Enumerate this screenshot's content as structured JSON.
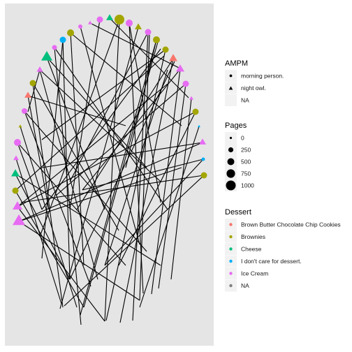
{
  "legends": {
    "ampm": {
      "title": "AMPM",
      "items": [
        {
          "label": "morning person.",
          "shape": "circle"
        },
        {
          "label": "night owl.",
          "shape": "triangle"
        },
        {
          "label": "NA",
          "shape": "none"
        }
      ]
    },
    "pages": {
      "title": "Pages",
      "items": [
        {
          "label": "0",
          "value": 0
        },
        {
          "label": "250",
          "value": 250
        },
        {
          "label": "500",
          "value": 500
        },
        {
          "label": "750",
          "value": 750
        },
        {
          "label": "1000",
          "value": 1000
        }
      ]
    },
    "dessert": {
      "title": "Dessert",
      "items": [
        {
          "label": "Brown Butter Chocolate Chip Cookies",
          "color": "#F8766D"
        },
        {
          "label": "Brownies",
          "color": "#A3A500"
        },
        {
          "label": "Cheese",
          "color": "#00BF7D"
        },
        {
          "label": "I don't care for dessert.",
          "color": "#00B0F6"
        },
        {
          "label": "Ice Cream",
          "color": "#E76BF3"
        },
        {
          "label": "NA",
          "color": "#7F7F7F"
        }
      ]
    }
  },
  "colors": {
    "panel_background": "#E5E5E5",
    "edge": "#000000",
    "legend_key_background": "#F2F2F2"
  }
}
